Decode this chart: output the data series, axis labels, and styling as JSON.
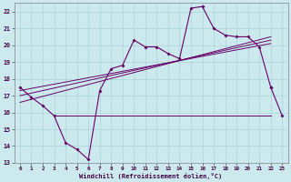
{
  "xlabel": "Windchill (Refroidissement éolien,°C)",
  "bg_color": "#cceaee",
  "grid_color": "#aad4da",
  "line_color": "#660066",
  "xmin": -0.5,
  "xmax": 23.5,
  "ymin": 13,
  "ymax": 22.5,
  "series1_x": [
    0,
    1,
    2,
    3,
    4,
    5,
    6,
    7,
    8,
    9,
    10,
    11,
    12,
    13,
    14,
    15,
    16,
    17,
    18,
    19,
    20,
    21,
    22
  ],
  "series1_y": [
    17.5,
    16.9,
    16.4,
    15.8,
    14.2,
    13.8,
    13.2,
    17.3,
    18.6,
    18.8,
    20.3,
    19.9,
    19.9,
    19.5,
    19.2,
    22.2,
    22.3,
    21.0,
    20.6,
    20.5,
    20.5,
    19.9,
    17.5
  ],
  "series2_x": [
    22,
    23
  ],
  "series2_y": [
    17.5,
    15.8
  ],
  "line_flat_y": 15.8,
  "line_flat_x_start": 3,
  "line_flat_x_end": 22,
  "trend1_x": [
    0,
    22
  ],
  "trend1_y": [
    16.6,
    20.5
  ],
  "trend2_x": [
    0,
    22
  ],
  "trend2_y": [
    17.0,
    20.3
  ],
  "trend3_x": [
    0,
    22
  ],
  "trend3_y": [
    17.3,
    20.1
  ],
  "xticks": [
    0,
    1,
    2,
    3,
    4,
    5,
    6,
    7,
    8,
    9,
    10,
    11,
    12,
    13,
    14,
    15,
    16,
    17,
    18,
    19,
    20,
    21,
    22,
    23
  ],
  "yticks": [
    13,
    14,
    15,
    16,
    17,
    18,
    19,
    20,
    21,
    22
  ]
}
